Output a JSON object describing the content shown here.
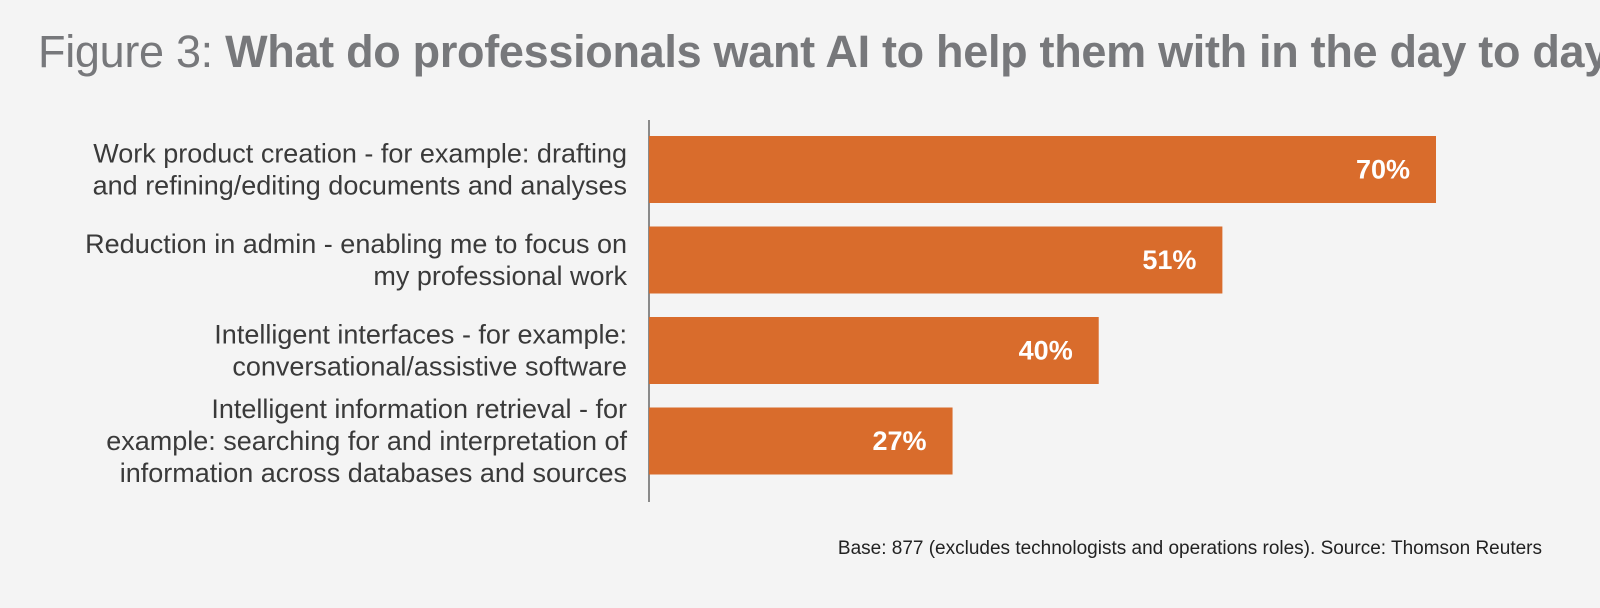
{
  "title": {
    "prefix": "Figure 3: ",
    "main": "What do professionals want AI to help them with in the day to day?"
  },
  "chart_data": {
    "type": "bar",
    "orientation": "horizontal",
    "categories": [
      [
        "Work product creation - for example: drafting",
        "and refining/editing documents and analyses"
      ],
      [
        "Reduction in admin - enabling me to focus on",
        "my professional work"
      ],
      [
        "Intelligent interfaces - for example:",
        "conversational/assistive software"
      ],
      [
        "Intelligent information retrieval - for",
        "example: searching for and interpretation of",
        "information across databases and sources"
      ]
    ],
    "values": [
      70,
      51,
      40,
      27
    ],
    "value_labels": [
      "70%",
      "51%",
      "40%",
      "27%"
    ],
    "value_unit": "%",
    "xlim": [
      0,
      100
    ],
    "bar_color": "#d96c2c",
    "grid": false,
    "legend": "none"
  },
  "footnote": "Base: 877 (excludes technologists and operations roles). Source: Thomson Reuters",
  "colors": {
    "background": "#f4f4f4",
    "title": "#77787b",
    "bar": "#d96c2c",
    "axis": "#8a8a8a",
    "label": "#3a3a3a",
    "value_label": "#ffffff"
  }
}
